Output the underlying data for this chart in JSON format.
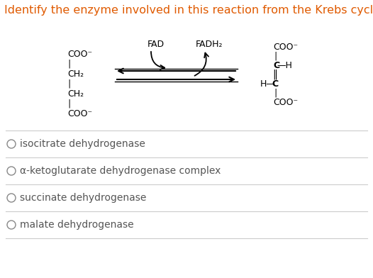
{
  "title": "Identify the enzyme involved in this reaction from the Krebs cycle.",
  "title_color": "#e05a00",
  "title_fontsize": 11.5,
  "background_color": "#ffffff",
  "fad_label": "FAD",
  "fadh2_label": "FADH₂",
  "options": [
    "isocitrate dehydrogenase",
    "α-ketoglutarate dehydrogenase complex",
    "succinate dehydrogenase",
    "malate dehydrogenase"
  ],
  "option_fontsize": 10,
  "option_color": "#555555",
  "divider_color": "#cccccc",
  "mol_fontsize": 9,
  "label_fontsize": 9
}
